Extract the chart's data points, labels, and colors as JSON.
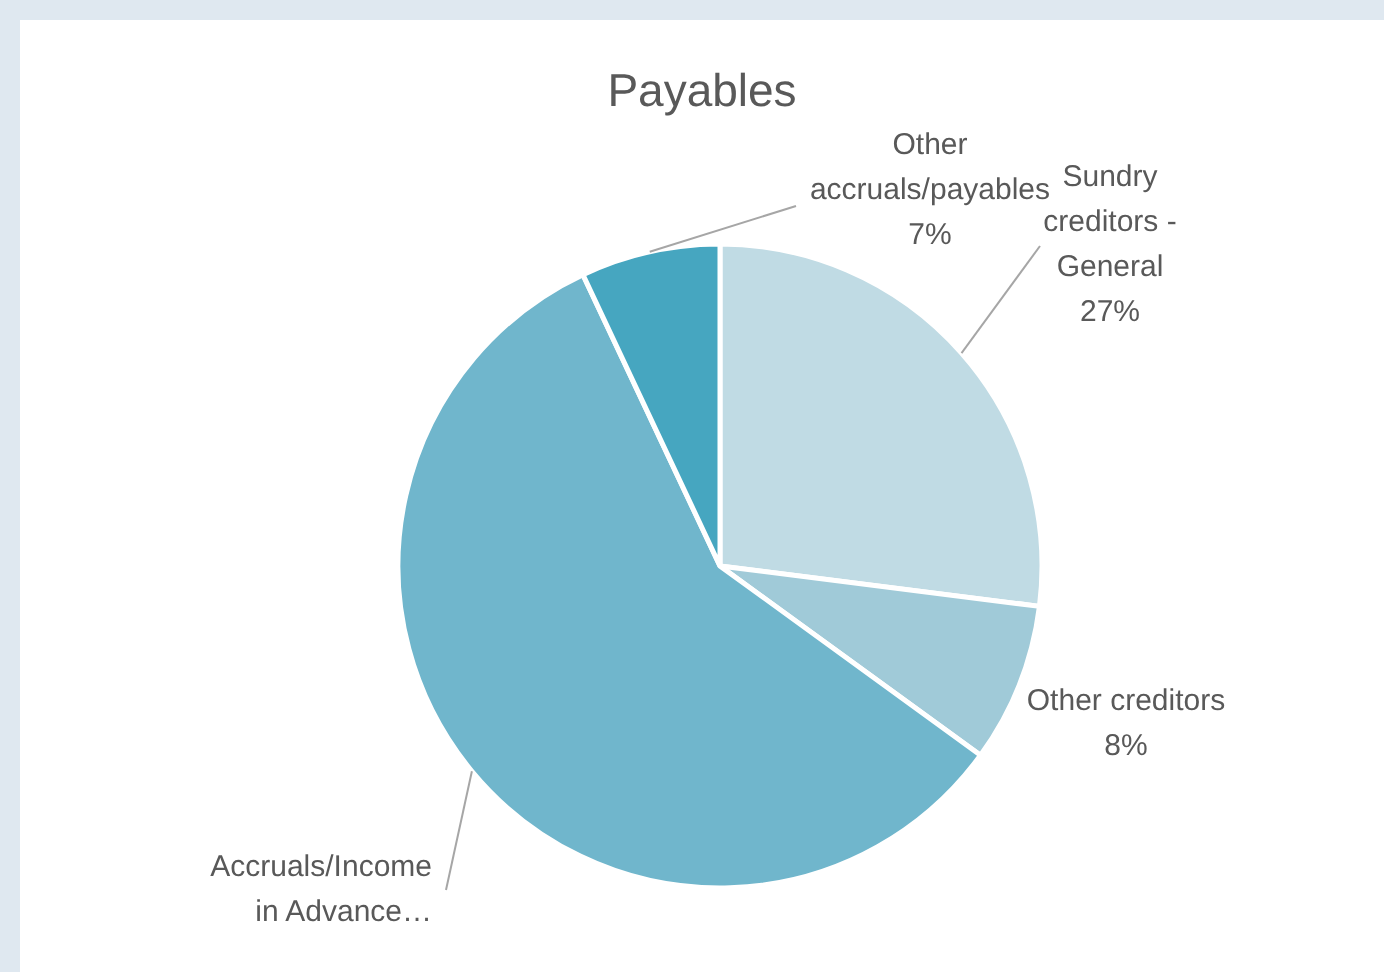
{
  "chart_data": {
    "type": "pie",
    "title": "Payables",
    "categories": [
      "Sundry creditors - General",
      "Other creditors",
      "Accruals/Income in Advance…",
      "Other accruals/payables"
    ],
    "values": [
      27,
      8,
      58,
      7
    ],
    "value_labels": [
      "27%",
      "8%",
      null,
      "7%"
    ],
    "colors": [
      "#c0dbe4",
      "#a0cad8",
      "#70b6cc",
      "#46a6c0"
    ]
  }
}
